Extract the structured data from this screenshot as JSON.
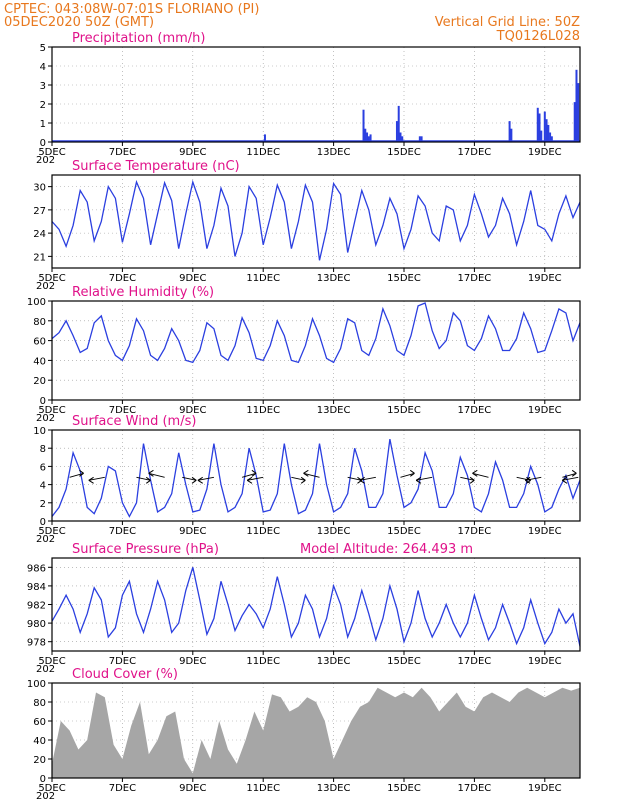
{
  "header": {
    "line1": "CPTEC:   043:08W-07:01S   FLORIANO (PI)",
    "line2": "05DEC2020 50Z (GMT)",
    "right1": "Vertical Grid Line: 50Z",
    "right2": "TQ0126L028"
  },
  "x_days": [
    "5DEC",
    "7DEC",
    "9DEC",
    "11DEC",
    "13DEC",
    "15DEC",
    "17DEC",
    "19DEC"
  ],
  "x_day_values": [
    5,
    7,
    9,
    11,
    13,
    15,
    17,
    19
  ],
  "x_range": [
    5,
    20
  ],
  "year_fragment": "202",
  "colors": {
    "header": "#e8781e",
    "title": "#e0128a",
    "line": "#2b3fe0",
    "bar": "#2b3fe0",
    "cloud": "#a6a6a6"
  },
  "chart_data": [
    {
      "type": "bar",
      "title": "Precipitation (mm/h)",
      "ylim": [
        0,
        5
      ],
      "yticks": [
        0,
        1,
        2,
        3,
        4,
        5
      ],
      "x": [
        11.05,
        13.85,
        13.9,
        13.95,
        14.0,
        14.05,
        14.8,
        14.85,
        14.9,
        14.95,
        15.45,
        15.5,
        18.0,
        18.05,
        18.8,
        18.85,
        18.9,
        19.0,
        19.05,
        19.1,
        19.15,
        19.2,
        19.85,
        19.9,
        19.95
      ],
      "values": [
        0.4,
        1.7,
        0.7,
        0.5,
        0.3,
        0.4,
        1.1,
        1.9,
        0.5,
        0.3,
        0.3,
        0.3,
        1.1,
        0.7,
        1.8,
        1.5,
        0.6,
        1.6,
        1.2,
        0.9,
        0.5,
        0.3,
        2.1,
        3.8,
        3.1
      ]
    },
    {
      "type": "line",
      "title": "Surface Temperature (nC)",
      "ylim": [
        19.5,
        31.5
      ],
      "yticks": [
        21,
        24,
        27,
        30
      ],
      "x": [
        5.0,
        5.2,
        5.4,
        5.6,
        5.8,
        6.0,
        6.2,
        6.4,
        6.6,
        6.8,
        7.0,
        7.2,
        7.4,
        7.6,
        7.8,
        8.0,
        8.2,
        8.4,
        8.6,
        8.8,
        9.0,
        9.2,
        9.4,
        9.6,
        9.8,
        10.0,
        10.2,
        10.4,
        10.6,
        10.8,
        11.0,
        11.2,
        11.4,
        11.6,
        11.8,
        12.0,
        12.2,
        12.4,
        12.6,
        12.8,
        13.0,
        13.2,
        13.4,
        13.6,
        13.8,
        14.0,
        14.2,
        14.4,
        14.6,
        14.8,
        15.0,
        15.2,
        15.4,
        15.6,
        15.8,
        16.0,
        16.2,
        16.4,
        16.6,
        16.8,
        17.0,
        17.2,
        17.4,
        17.6,
        17.8,
        18.0,
        18.2,
        18.4,
        18.6,
        18.8,
        19.0,
        19.2,
        19.4,
        19.6,
        19.8,
        20.0
      ],
      "values": [
        25.5,
        24.5,
        22.3,
        25.0,
        29.5,
        28.0,
        23.0,
        25.5,
        30.0,
        28.5,
        22.8,
        26.5,
        30.6,
        28.5,
        22.5,
        26.5,
        30.5,
        28.2,
        22.0,
        26.5,
        30.6,
        28.0,
        22.0,
        25.0,
        29.8,
        27.5,
        21.0,
        24.0,
        30.0,
        28.5,
        22.5,
        26.0,
        30.2,
        28.0,
        22.0,
        25.5,
        30.2,
        28.0,
        20.5,
        24.5,
        30.4,
        29.0,
        21.5,
        25.5,
        29.5,
        27.0,
        22.5,
        25.0,
        28.5,
        26.5,
        22.0,
        24.5,
        28.8,
        27.5,
        24.0,
        23.0,
        27.5,
        27.0,
        23.0,
        25.0,
        29.0,
        26.5,
        23.5,
        25.0,
        28.5,
        26.5,
        22.5,
        25.5,
        29.5,
        25.0,
        24.5,
        23.0,
        26.5,
        28.8,
        26.0,
        28.0
      ]
    },
    {
      "type": "line",
      "title": "Relative Humidity (%)",
      "ylim": [
        0,
        100
      ],
      "yticks": [
        0,
        20,
        40,
        60,
        80,
        100
      ],
      "x": [
        5.0,
        5.2,
        5.4,
        5.6,
        5.8,
        6.0,
        6.2,
        6.4,
        6.6,
        6.8,
        7.0,
        7.2,
        7.4,
        7.6,
        7.8,
        8.0,
        8.2,
        8.4,
        8.6,
        8.8,
        9.0,
        9.2,
        9.4,
        9.6,
        9.8,
        10.0,
        10.2,
        10.4,
        10.6,
        10.8,
        11.0,
        11.2,
        11.4,
        11.6,
        11.8,
        12.0,
        12.2,
        12.4,
        12.6,
        12.8,
        13.0,
        13.2,
        13.4,
        13.6,
        13.8,
        14.0,
        14.2,
        14.4,
        14.6,
        14.8,
        15.0,
        15.2,
        15.4,
        15.6,
        15.8,
        16.0,
        16.2,
        16.4,
        16.6,
        16.8,
        17.0,
        17.2,
        17.4,
        17.6,
        17.8,
        18.0,
        18.2,
        18.4,
        18.6,
        18.8,
        19.0,
        19.2,
        19.4,
        19.6,
        19.8,
        20.0
      ],
      "values": [
        62,
        68,
        80,
        65,
        48,
        52,
        78,
        85,
        60,
        45,
        40,
        55,
        82,
        70,
        45,
        40,
        52,
        72,
        60,
        40,
        38,
        50,
        78,
        72,
        45,
        40,
        55,
        83,
        68,
        42,
        40,
        55,
        80,
        65,
        40,
        38,
        55,
        82,
        65,
        42,
        38,
        52,
        82,
        78,
        50,
        45,
        62,
        92,
        75,
        50,
        45,
        65,
        95,
        98,
        70,
        52,
        60,
        88,
        80,
        55,
        50,
        62,
        85,
        72,
        50,
        50,
        62,
        88,
        72,
        48,
        50,
        70,
        92,
        88,
        60,
        78
      ]
    },
    {
      "type": "line",
      "title": "Surface Wind (m/s)",
      "ylim": [
        0,
        10
      ],
      "yticks": [
        0,
        2,
        4,
        6,
        8,
        10
      ],
      "x": [
        5.0,
        5.2,
        5.4,
        5.6,
        5.8,
        6.0,
        6.2,
        6.4,
        6.6,
        6.8,
        7.0,
        7.2,
        7.4,
        7.6,
        7.8,
        8.0,
        8.2,
        8.4,
        8.6,
        8.8,
        9.0,
        9.2,
        9.4,
        9.6,
        9.8,
        10.0,
        10.2,
        10.4,
        10.6,
        10.8,
        11.0,
        11.2,
        11.4,
        11.6,
        11.8,
        12.0,
        12.2,
        12.4,
        12.6,
        12.8,
        13.0,
        13.2,
        13.4,
        13.6,
        13.8,
        14.0,
        14.2,
        14.4,
        14.6,
        14.8,
        15.0,
        15.2,
        15.4,
        15.6,
        15.8,
        16.0,
        16.2,
        16.4,
        16.6,
        16.8,
        17.0,
        17.2,
        17.4,
        17.6,
        17.8,
        18.0,
        18.2,
        18.4,
        18.6,
        18.8,
        19.0,
        19.2,
        19.4,
        19.6,
        19.8,
        20.0
      ],
      "values": [
        0.5,
        1.5,
        3.5,
        7.5,
        5.5,
        1.5,
        0.8,
        2.5,
        6.0,
        5.5,
        2.0,
        0.5,
        2.0,
        8.5,
        4.5,
        1.0,
        1.5,
        3.0,
        7.5,
        4.0,
        1.0,
        1.2,
        3.5,
        8.5,
        4.0,
        1.0,
        1.5,
        3.0,
        8.0,
        5.0,
        1.0,
        1.2,
        3.0,
        8.5,
        4.0,
        0.8,
        1.2,
        3.0,
        8.5,
        4.0,
        1.0,
        1.5,
        3.0,
        8.0,
        5.5,
        1.5,
        1.5,
        3.0,
        9.0,
        5.0,
        1.5,
        2.0,
        3.5,
        7.5,
        5.5,
        1.5,
        1.5,
        3.0,
        7.0,
        5.0,
        1.5,
        1.0,
        3.0,
        6.5,
        4.5,
        1.5,
        1.5,
        3.0,
        6.0,
        4.0,
        1.0,
        1.5,
        3.5,
        5.0,
        2.5,
        4.5
      ],
      "arrows_x": [
        5.5,
        6.5,
        7.4,
        8.2,
        8.7,
        9.6,
        10.4,
        11.0,
        11.8,
        12.6,
        13.4,
        14.2,
        14.9,
        15.8,
        16.6,
        17.4,
        18.2,
        18.9,
        19.5,
        19.95
      ]
    },
    {
      "type": "line",
      "title": "Surface Pressure (hPa)",
      "annotation": "Model Altitude: 264.493 m",
      "ylim": [
        977,
        987
      ],
      "yticks": [
        978,
        980,
        982,
        984,
        986
      ],
      "x": [
        5.0,
        5.2,
        5.4,
        5.6,
        5.8,
        6.0,
        6.2,
        6.4,
        6.6,
        6.8,
        7.0,
        7.2,
        7.4,
        7.6,
        7.8,
        8.0,
        8.2,
        8.4,
        8.6,
        8.8,
        9.0,
        9.2,
        9.4,
        9.6,
        9.8,
        10.0,
        10.2,
        10.4,
        10.6,
        10.8,
        11.0,
        11.2,
        11.4,
        11.6,
        11.8,
        12.0,
        12.2,
        12.4,
        12.6,
        12.8,
        13.0,
        13.2,
        13.4,
        13.6,
        13.8,
        14.0,
        14.2,
        14.4,
        14.6,
        14.8,
        15.0,
        15.2,
        15.4,
        15.6,
        15.8,
        16.0,
        16.2,
        16.4,
        16.6,
        16.8,
        17.0,
        17.2,
        17.4,
        17.6,
        17.8,
        18.0,
        18.2,
        18.4,
        18.6,
        18.8,
        19.0,
        19.2,
        19.4,
        19.6,
        19.8,
        20.0
      ],
      "values": [
        980.2,
        981.5,
        983.0,
        981.5,
        979.0,
        981.0,
        983.8,
        982.5,
        978.5,
        979.5,
        983.0,
        984.5,
        981.0,
        979.0,
        981.5,
        984.5,
        982.5,
        979.0,
        980.0,
        983.5,
        986.0,
        982.5,
        978.8,
        980.5,
        984.5,
        982.0,
        979.2,
        980.8,
        982.0,
        981.0,
        979.5,
        981.5,
        985.0,
        982.0,
        978.5,
        980.0,
        983.0,
        981.5,
        978.5,
        980.5,
        984.0,
        982.0,
        978.5,
        980.5,
        983.5,
        981.0,
        978.2,
        980.5,
        984.0,
        981.5,
        978.0,
        980.0,
        983.5,
        980.5,
        978.5,
        980.0,
        982.0,
        980.0,
        978.5,
        980.0,
        983.0,
        980.5,
        978.2,
        979.5,
        982.0,
        980.0,
        977.8,
        979.5,
        982.5,
        980.0,
        977.8,
        979.0,
        981.5,
        980.0,
        981.0,
        977.5
      ]
    },
    {
      "type": "area",
      "title": "Cloud Cover (%)",
      "ylim": [
        0,
        100
      ],
      "yticks": [
        0,
        20,
        40,
        60,
        80,
        100
      ],
      "x": [
        5.0,
        5.25,
        5.5,
        5.75,
        6.0,
        6.25,
        6.5,
        6.75,
        7.0,
        7.25,
        7.5,
        7.75,
        8.0,
        8.25,
        8.5,
        8.75,
        9.0,
        9.25,
        9.5,
        9.75,
        10.0,
        10.25,
        10.5,
        10.75,
        11.0,
        11.25,
        11.5,
        11.75,
        12.0,
        12.25,
        12.5,
        12.75,
        13.0,
        13.25,
        13.5,
        13.75,
        14.0,
        14.25,
        14.5,
        14.75,
        15.0,
        15.25,
        15.5,
        15.75,
        16.0,
        16.25,
        16.5,
        16.75,
        17.0,
        17.25,
        17.5,
        17.75,
        18.0,
        18.25,
        18.5,
        18.75,
        19.0,
        19.25,
        19.5,
        19.75,
        20.0
      ],
      "values": [
        15,
        60,
        50,
        30,
        40,
        90,
        85,
        35,
        20,
        55,
        80,
        25,
        40,
        65,
        70,
        20,
        5,
        40,
        20,
        60,
        30,
        15,
        40,
        70,
        50,
        88,
        85,
        70,
        75,
        85,
        80,
        60,
        20,
        40,
        60,
        75,
        80,
        95,
        90,
        85,
        90,
        85,
        95,
        85,
        70,
        80,
        90,
        75,
        70,
        85,
        90,
        85,
        80,
        90,
        95,
        90,
        85,
        90,
        95,
        92,
        95
      ]
    }
  ]
}
